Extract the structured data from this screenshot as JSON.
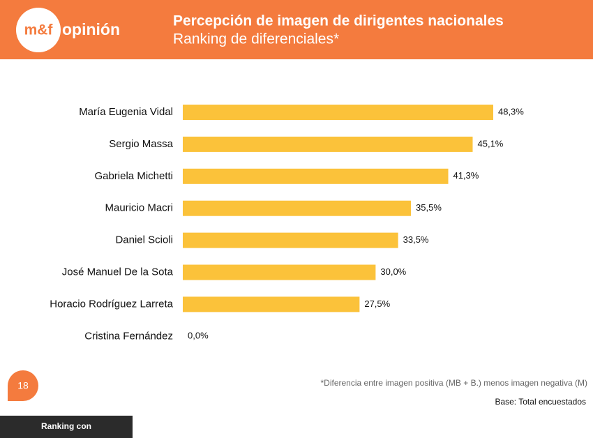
{
  "header": {
    "logo_brand": "m&f",
    "logo_word": "opinión",
    "title": "Percepción de imagen de dirigentes nacionales",
    "subtitle": "Ranking de diferenciales*"
  },
  "chart_data": {
    "type": "bar",
    "orientation": "horizontal",
    "color": "#fbc23a",
    "categories": [
      "María Eugenia Vidal",
      "Sergio Massa",
      "Gabriela Michetti",
      "Mauricio Macri",
      "Daniel Scioli",
      "José Manuel De la Sota",
      "Horacio Rodríguez Larreta",
      "Cristina Fernández"
    ],
    "values": [
      48.3,
      45.1,
      41.3,
      35.5,
      33.5,
      30.0,
      27.5,
      0.0
    ],
    "value_labels": [
      "48,3%",
      "45,1%",
      "41,3%",
      "35,5%",
      "33,5%",
      "30,0%",
      "27,5%",
      "0,0%"
    ]
  },
  "footer": {
    "page_number": "18",
    "footnote": "*Diferencia entre imagen positiva (MB + B.) menos imagen negativa (M)",
    "base": "Base: Total encuestados"
  },
  "caption": "Ranking con"
}
